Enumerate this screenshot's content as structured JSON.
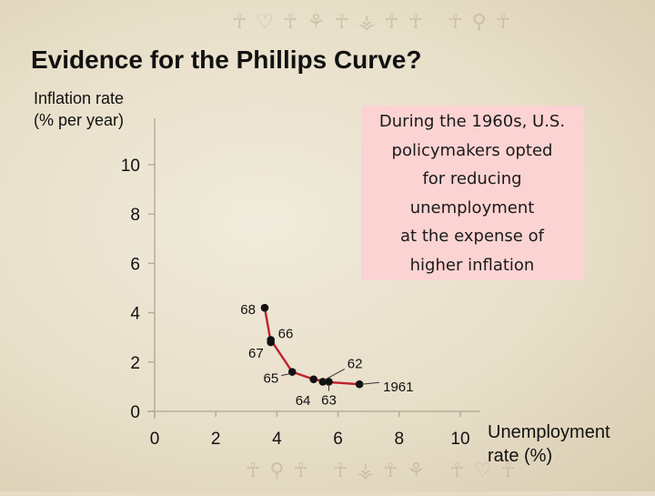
{
  "slide": {
    "title": "Evidence for the Phillips Curve?",
    "y_axis_label_lines": [
      "Inflation rate",
      "(% per year)"
    ],
    "x_axis_label_lines": [
      "Unemployment",
      "rate (%)"
    ],
    "callout_lines": [
      "During the 1960s, U.S.",
      "policymakers opted",
      "for reducing",
      "unemployment",
      "at the expense of",
      "higher inflation"
    ],
    "decor_top": "☥♡☥⚘☥⚶☥☥ ☥⚲☥",
    "decor_bottom": "☥⚲☥ ☥⚶☥⚘ ☥♡☥"
  },
  "colors": {
    "background": "#e8dfc9",
    "callout": "#fcd3d3",
    "curve": "#c0202a",
    "points": "#111111",
    "axis": "#b8ad97"
  },
  "chart_data": {
    "type": "line",
    "xlim": [
      0,
      10
    ],
    "ylim": [
      0,
      10
    ],
    "xticks": [
      0,
      2,
      4,
      6,
      8,
      10
    ],
    "yticks": [
      0,
      2,
      4,
      6,
      8,
      10
    ],
    "grid": false,
    "series": [
      {
        "points": [
          {
            "label": "1961",
            "x": 6.7,
            "y": 1.1
          },
          {
            "label": "62",
            "x": 5.5,
            "y": 1.2
          },
          {
            "label": "63",
            "x": 5.7,
            "y": 1.2
          },
          {
            "label": "64",
            "x": 5.2,
            "y": 1.3
          },
          {
            "label": "65",
            "x": 4.5,
            "y": 1.6
          },
          {
            "label": "66",
            "x": 3.8,
            "y": 2.9
          },
          {
            "label": "67",
            "x": 3.8,
            "y": 2.8
          },
          {
            "label": "68",
            "x": 3.6,
            "y": 4.2
          }
        ]
      }
    ]
  }
}
